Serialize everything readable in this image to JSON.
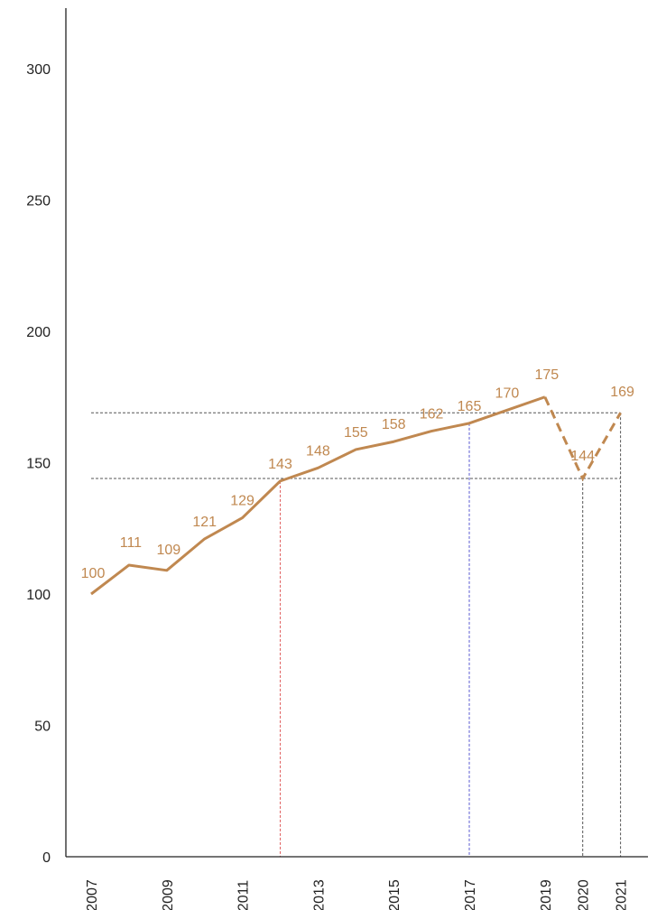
{
  "chart_data": {
    "type": "line",
    "title": "",
    "xlabel": "",
    "ylabel": "",
    "ylim": [
      0,
      300
    ],
    "yticks": [
      0,
      50,
      100,
      150,
      200,
      250,
      300
    ],
    "xticks": [
      2007,
      2009,
      2011,
      2013,
      2015,
      2017,
      2019,
      2020,
      2021
    ],
    "grid": false,
    "legend": "none",
    "colors": {
      "line": "#c08850",
      "label": "#c08850",
      "axis": "#222222",
      "ref_2012": "#e06060",
      "ref_2017": "#5a5ad0",
      "ref_2020": "#555555",
      "ref_2021": "#555555",
      "hline": "#555555"
    },
    "series": [
      {
        "x": [
          2007,
          2008,
          2009,
          2010,
          2011,
          2012,
          2013,
          2014,
          2015,
          2016,
          2017,
          2018,
          2019,
          2020,
          2021
        ],
        "values": [
          100,
          111,
          109,
          121,
          129,
          143,
          148,
          155,
          158,
          162,
          165,
          170,
          175,
          144,
          169
        ],
        "dashed_from": 2019
      }
    ],
    "reference_lines": {
      "vertical": [
        2012,
        2017,
        2020,
        2021
      ],
      "horizontal": [
        144,
        169
      ]
    }
  }
}
